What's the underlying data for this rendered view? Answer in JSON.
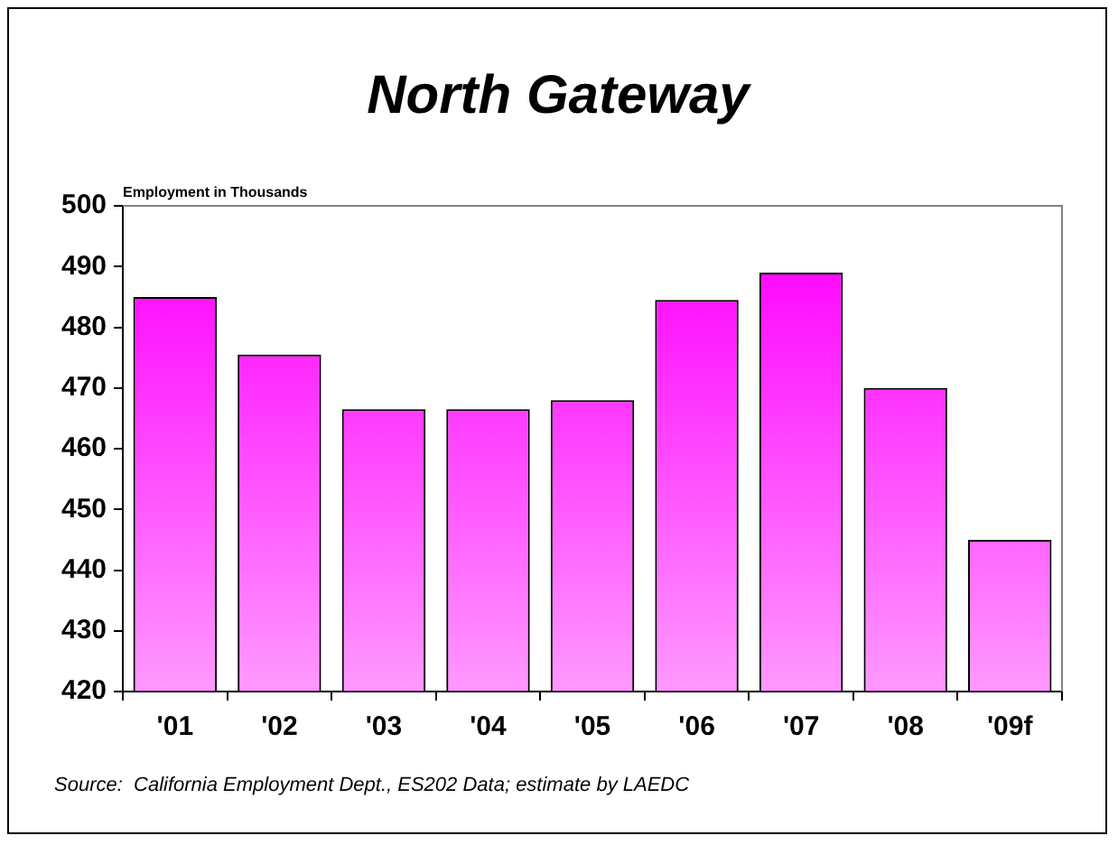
{
  "chart_data": {
    "type": "bar",
    "title": "North Gateway",
    "ylabel": "Employment in Thousands",
    "categories": [
      "'01",
      "'02",
      "'03",
      "'04",
      "'05",
      "'06",
      "'07",
      "'08",
      "'09f"
    ],
    "values": [
      485,
      475.5,
      466.5,
      466.5,
      468,
      484.5,
      489,
      470,
      445
    ],
    "color": "#ff00ff",
    "ylim": [
      420,
      500
    ],
    "yticks": [
      420,
      430,
      440,
      450,
      460,
      470,
      480,
      490,
      500
    ],
    "annotations": [
      "Source:  California Employment Dept., ES202 Data; estimate by LAEDC"
    ]
  }
}
